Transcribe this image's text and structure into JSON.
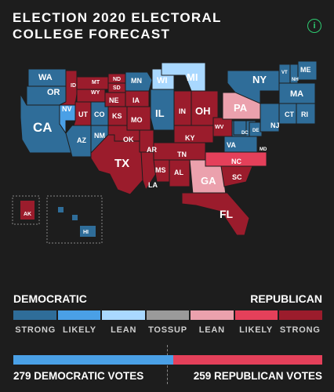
{
  "title": "ELECTION 2020 ELECTORAL COLLEGE FORECAST",
  "info_icon": "i",
  "colors": {
    "strong_dem": "#2f6d99",
    "likely_dem": "#4aa0e6",
    "lean_dem": "#a9d8ff",
    "tossup": "#9a9a9a",
    "lean_rep": "#eba1ad",
    "likely_rep": "#e4405a",
    "strong_rep": "#9b1c2c"
  },
  "states": {
    "WA": "WA",
    "OR": "OR",
    "CA": "CA",
    "NV": "NV",
    "ID": "ID",
    "MT": "MT",
    "WY": "WY",
    "UT": "UT",
    "CO": "CO",
    "AZ": "AZ",
    "NM": "NM",
    "ND": "ND",
    "SD": "SD",
    "NE": "NE",
    "KS": "KS",
    "OK": "OK",
    "TX": "TX",
    "MN": "MN",
    "IA": "IA",
    "MO": "MO",
    "AR": "AR",
    "LA": "LA",
    "WI": "WI",
    "IL": "IL",
    "MI": "MI",
    "IN": "IN",
    "OH": "OH",
    "KY": "KY",
    "TN": "TN",
    "MS": "MS",
    "AL": "AL",
    "GA": "GA",
    "FL": "FL",
    "SC": "SC",
    "NC": "NC",
    "VA": "VA",
    "WV": "WV",
    "PA": "PA",
    "NY": "NY",
    "VT": "VT",
    "NH": "NH",
    "ME": "ME",
    "MA": "MA",
    "CT": "CT",
    "RI": "RI",
    "NJ": "NJ",
    "DE": "DE",
    "MD": "MD",
    "DC": "DC",
    "AK": "AK",
    "HI": "HI"
  },
  "legend": {
    "left_label": "DEMOCRATIC",
    "right_label": "REPUBLICAN",
    "categories": [
      "STRONG",
      "LIKELY",
      "LEAN",
      "TOSSUP",
      "LEAN",
      "LIKELY",
      "STRONG"
    ]
  },
  "votes": {
    "dem_count": 279,
    "rep_count": 259,
    "dem_label": "279 DEMOCRATIC VOTES",
    "rep_label": "259 REPUBLICAN VOTES"
  }
}
